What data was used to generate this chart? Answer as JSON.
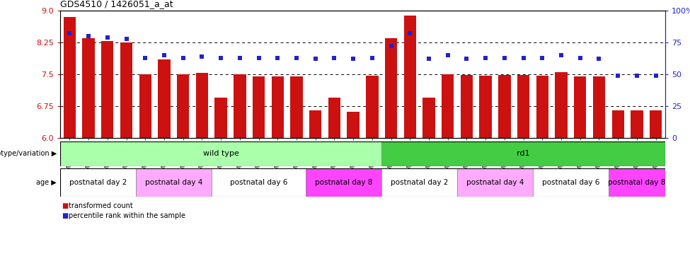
{
  "title": "GDS4510 / 1426051_a_at",
  "samples": [
    "GSM1024803",
    "GSM1024804",
    "GSM1024805",
    "GSM1024806",
    "GSM1024807",
    "GSM1024808",
    "GSM1024809",
    "GSM1024810",
    "GSM1024811",
    "GSM1024812",
    "GSM1024813",
    "GSM1024814",
    "GSM1024815",
    "GSM1024816",
    "GSM1024817",
    "GSM1024818",
    "GSM1024819",
    "GSM1024820",
    "GSM1024821",
    "GSM1024822",
    "GSM1024823",
    "GSM1024824",
    "GSM1024825",
    "GSM1024826",
    "GSM1024827",
    "GSM1024828",
    "GSM1024829",
    "GSM1024830",
    "GSM1024831",
    "GSM1024832",
    "GSM1024833",
    "GSM1024834"
  ],
  "bar_values": [
    8.85,
    8.35,
    8.28,
    8.25,
    7.5,
    7.85,
    7.5,
    7.53,
    6.95,
    7.5,
    7.45,
    7.45,
    7.45,
    6.65,
    6.95,
    6.62,
    7.47,
    8.35,
    8.88,
    6.95,
    7.5,
    7.48,
    7.47,
    7.48,
    7.48,
    7.47,
    7.55,
    7.45,
    7.45,
    6.65,
    6.65,
    6.65
  ],
  "percentile_values": [
    82,
    80,
    79,
    78,
    63,
    65,
    63,
    64,
    63,
    63,
    63,
    63,
    63,
    62,
    63,
    62,
    63,
    72,
    82,
    62,
    65,
    62,
    63,
    63,
    63,
    63,
    65,
    63,
    62,
    49,
    49,
    49
  ],
  "ylim_left": [
    6.0,
    9.0
  ],
  "ylim_right": [
    0,
    100
  ],
  "yticks_left": [
    6.0,
    6.75,
    7.5,
    8.25,
    9.0
  ],
  "yticks_right": [
    0,
    25,
    50,
    75,
    100
  ],
  "bar_color": "#cc1111",
  "dot_color": "#2222cc",
  "bar_width": 0.65,
  "genotype_groups": [
    {
      "label": "wild type",
      "start": 0,
      "end": 17,
      "color": "#aaffaa"
    },
    {
      "label": "rd1",
      "start": 17,
      "end": 32,
      "color": "#44cc44"
    }
  ],
  "age_colors": {
    "postnatal day 2": "#ffffff",
    "postnatal day 4": "#ffaaff",
    "postnatal day 6": "#ffffff",
    "postnatal day 8": "#ff44ff"
  },
  "age_groups": [
    {
      "label": "postnatal day 2",
      "start": 0,
      "end": 4
    },
    {
      "label": "postnatal day 4",
      "start": 4,
      "end": 8
    },
    {
      "label": "postnatal day 6",
      "start": 8,
      "end": 13
    },
    {
      "label": "postnatal day 8",
      "start": 13,
      "end": 17
    },
    {
      "label": "postnatal day 2",
      "start": 17,
      "end": 21
    },
    {
      "label": "postnatal day 4",
      "start": 21,
      "end": 25
    },
    {
      "label": "postnatal day 6",
      "start": 25,
      "end": 29
    },
    {
      "label": "postnatal day 8",
      "start": 29,
      "end": 32
    }
  ],
  "legend_bar_label": "transformed count",
  "legend_dot_label": "percentile rank within the sample",
  "background_color": "#ffffff",
  "figsize": [
    9.75,
    3.93
  ],
  "dpi": 100
}
